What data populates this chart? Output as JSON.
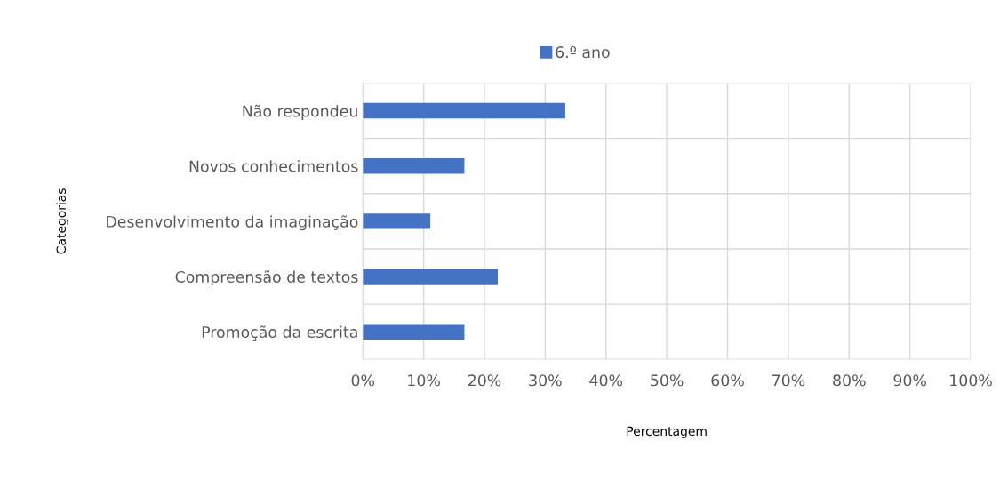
{
  "chart_data": {
    "type": "bar",
    "orientation": "horizontal",
    "xlabel": "Percentagem",
    "ylabel": "Categorias",
    "categories": [
      "Não respondeu",
      "Novos conhecimentos",
      "Desenvolvimento da imaginação",
      "Compreensão de textos",
      "Promoção da escrita"
    ],
    "series": [
      {
        "name": "6.º ano",
        "color": "#4472c4",
        "values": [
          33.3,
          16.7,
          11.1,
          22.2,
          16.7
        ]
      }
    ],
    "xlim": [
      0,
      100
    ],
    "xticks": [
      {
        "value": 0,
        "label": "0%"
      },
      {
        "value": 10,
        "label": "10%"
      },
      {
        "value": 20,
        "label": "20%"
      },
      {
        "value": 30,
        "label": "30%"
      },
      {
        "value": 40,
        "label": "40%"
      },
      {
        "value": 50,
        "label": "50%"
      },
      {
        "value": 60,
        "label": "60%"
      },
      {
        "value": 70,
        "label": "70%"
      },
      {
        "value": 80,
        "label": "80%"
      },
      {
        "value": 90,
        "label": "90%"
      },
      {
        "value": 100,
        "label": "100%"
      }
    ],
    "grid": true,
    "legend": "top"
  }
}
